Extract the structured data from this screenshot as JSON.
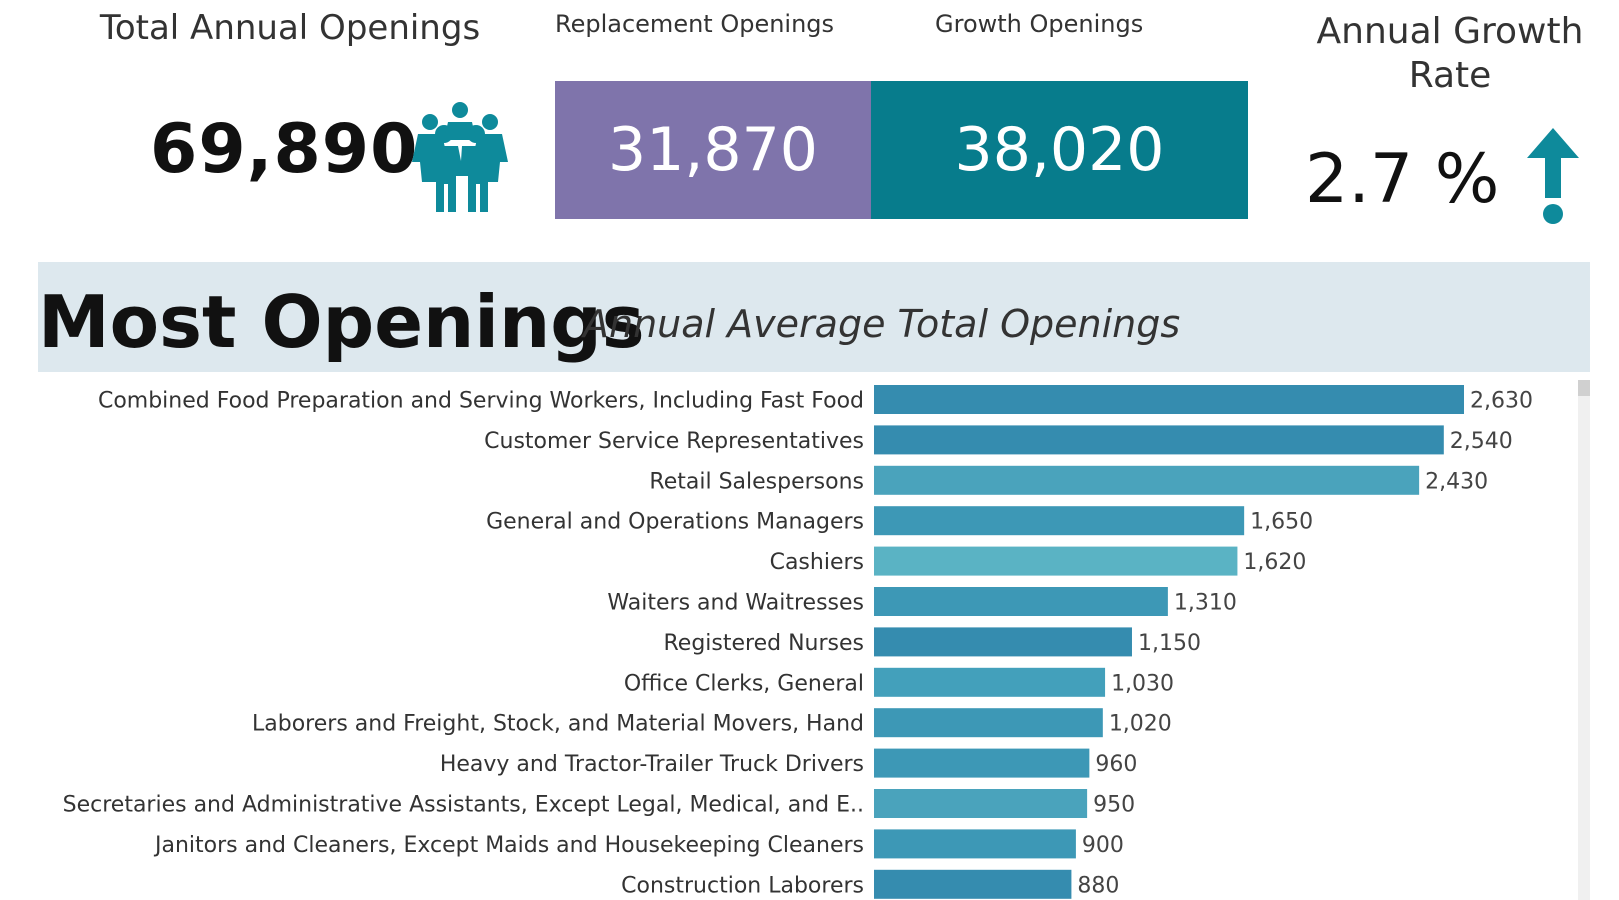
{
  "kpis": {
    "total_title": "Total Annual Openings",
    "total_value": "69,890",
    "replacement_title": "Replacement Openings",
    "replacement_value": "31,870",
    "growth_title": "Growth Openings",
    "growth_value": "38,020",
    "rate_title_line1": "Annual Growth",
    "rate_title_line2": "Rate",
    "rate_value": "2.7 %",
    "replacement_color": "#7f74ab",
    "growth_color": "#077c8c",
    "icons": {
      "people": "people-group-icon",
      "arrow": "arrow-up-icon"
    }
  },
  "banner": {
    "title": "Most Openings",
    "subtitle": "Annual Average Total Openings"
  },
  "chart_data": {
    "type": "bar",
    "orientation": "horizontal",
    "categories": [
      "Combined Food Preparation and Serving Workers, Including Fast Food",
      "Customer Service Representatives",
      "Retail Salespersons",
      "General and Operations Managers",
      "Cashiers",
      "Waiters and Waitresses",
      "Registered Nurses",
      "Office Clerks, General",
      "Laborers and Freight, Stock, and Material Movers, Hand",
      "Heavy and Tractor-Trailer Truck Drivers",
      "Secretaries and Administrative Assistants, Except Legal, Medical, and E..",
      "Janitors and Cleaners, Except Maids and Housekeeping Cleaners",
      "Construction Laborers"
    ],
    "values": [
      2630,
      2540,
      2430,
      1650,
      1620,
      1310,
      1150,
      1030,
      1020,
      960,
      950,
      900,
      880
    ],
    "value_labels": [
      "2,630",
      "2,540",
      "2,430",
      "1,650",
      "1,620",
      "1,310",
      "1,150",
      "1,030",
      "1,020",
      "960",
      "950",
      "900",
      "880"
    ],
    "bar_colors": [
      "#358caf",
      "#358caf",
      "#4aa3bc",
      "#3d98b6",
      "#5ab3c4",
      "#3d98b6",
      "#358caf",
      "#43a0bb",
      "#3d98b6",
      "#3d98b6",
      "#4aa3bc",
      "#3d98b6",
      "#358caf"
    ],
    "xlim": [
      0,
      2630
    ],
    "grid": false,
    "legend": "none"
  }
}
